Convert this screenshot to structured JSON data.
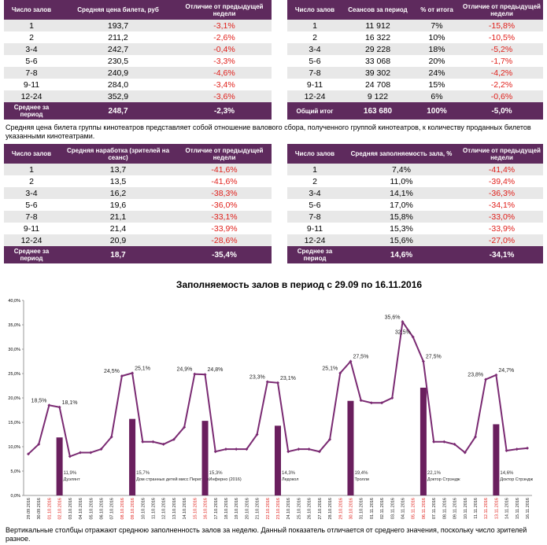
{
  "tables": [
    {
      "headers": [
        "Число залов",
        "Средняя цена билета, руб",
        "Отличие от предыдущей недели"
      ],
      "rows": [
        [
          "1",
          "193,7",
          "-3,1%"
        ],
        [
          "2",
          "211,2",
          "-2,6%"
        ],
        [
          "3-4",
          "242,7",
          "-0,4%"
        ],
        [
          "5-6",
          "230,5",
          "-3,3%"
        ],
        [
          "7-8",
          "240,9",
          "-4,6%"
        ],
        [
          "9-11",
          "284,0",
          "-3,4%"
        ],
        [
          "12-24",
          "352,9",
          "-3,6%"
        ]
      ],
      "footer": [
        "Среднее за период",
        "248,7",
        "-2,3%"
      ]
    },
    {
      "headers": [
        "Число залов",
        "Сеансов за период",
        "% от итога",
        "Отличие от предыдущей недели"
      ],
      "rows": [
        [
          "1",
          "11 912",
          "7%",
          "-15,8%"
        ],
        [
          "2",
          "16 322",
          "10%",
          "-10,5%"
        ],
        [
          "3-4",
          "29 228",
          "18%",
          "-5,2%"
        ],
        [
          "5-6",
          "33 068",
          "20%",
          "-1,7%"
        ],
        [
          "7-8",
          "39 302",
          "24%",
          "-4,2%"
        ],
        [
          "9-11",
          "24 708",
          "15%",
          "-2,2%"
        ],
        [
          "12-24",
          "9 122",
          "6%",
          "-0,6%"
        ]
      ],
      "footer": [
        "Общий итог",
        "163 680",
        "100%",
        "-5,0%"
      ]
    },
    {
      "headers": [
        "Число залов",
        "Средняя наработка (зрителей на сеанс)",
        "Отличие от предыдущей недели"
      ],
      "rows": [
        [
          "1",
          "13,7",
          "-41,6%"
        ],
        [
          "2",
          "13,5",
          "-41,6%"
        ],
        [
          "3-4",
          "16,2",
          "-38,3%"
        ],
        [
          "5-6",
          "19,6",
          "-36,0%"
        ],
        [
          "7-8",
          "21,1",
          "-33,1%"
        ],
        [
          "9-11",
          "21,4",
          "-33,9%"
        ],
        [
          "12-24",
          "20,9",
          "-28,6%"
        ]
      ],
      "footer": [
        "Среднее за период",
        "18,7",
        "-35,4%"
      ]
    },
    {
      "headers": [
        "Число залов",
        "Средняя заполняемость зала, %",
        "Отличие от предыдущей недели"
      ],
      "rows": [
        [
          "1",
          "7,4%",
          "-41,4%"
        ],
        [
          "2",
          "11,0%",
          "-39,4%"
        ],
        [
          "3-4",
          "14,1%",
          "-36,3%"
        ],
        [
          "5-6",
          "17,0%",
          "-34,1%"
        ],
        [
          "7-8",
          "15,8%",
          "-33,0%"
        ],
        [
          "9-11",
          "15,3%",
          "-33,9%"
        ],
        [
          "12-24",
          "15,6%",
          "-27,0%"
        ]
      ],
      "footer": [
        "Среднее за период",
        "14,6%",
        "-34,1%"
      ]
    }
  ],
  "note_price": "Средняя цена билета группы кинотеатров представляет собой отношение валового сбора, полученного группой кинотеатров, к количеству проданных билетов указанными кинотеатрами.",
  "note_chart": "Вертикальные столбцы отражают среднюю заполненность залов за неделю. Данный показатель отличается от среднего значения, поскольку число зрителей разное.",
  "chart_data": {
    "type": "line",
    "title": "Заполняемость залов в период с 29.09 по 16.11.2016",
    "x": [
      "29.09.2016",
      "30.09.2016",
      "01.10.2016",
      "02.10.2016",
      "03.10.2016",
      "04.10.2016",
      "05.10.2016",
      "06.10.2016",
      "07.10.2016",
      "08.10.2016",
      "09.10.2016",
      "10.10.2016",
      "11.10.2016",
      "12.10.2016",
      "13.10.2016",
      "14.10.2016",
      "15.10.2016",
      "16.10.2016",
      "17.10.2016",
      "18.10.2016",
      "19.10.2016",
      "20.10.2016",
      "21.10.2016",
      "22.10.2016",
      "23.10.2016",
      "24.10.2016",
      "25.10.2016",
      "26.10.2016",
      "27.10.2016",
      "28.10.2016",
      "29.10.2016",
      "30.10.2016",
      "31.10.2016",
      "01.11.2016",
      "02.11.2016",
      "03.11.2016",
      "04.11.2016",
      "05.11.2016",
      "06.11.2016",
      "07.11.2016",
      "08.11.2016",
      "09.11.2016",
      "10.11.2016",
      "11.11.2016",
      "12.11.2016",
      "13.11.2016",
      "14.11.2016",
      "15.11.2016",
      "16.11.2016"
    ],
    "weekend_color": "#e0201b",
    "series": [
      {
        "type": "line",
        "color": "#7a2a72",
        "values": [
          8.5,
          10.5,
          18.5,
          18.1,
          8.0,
          8.8,
          8.8,
          9.5,
          12.0,
          24.5,
          25.1,
          11.0,
          11.0,
          10.5,
          11.5,
          14.0,
          24.9,
          24.8,
          9.0,
          9.5,
          9.5,
          9.5,
          12.5,
          23.3,
          23.1,
          9.0,
          9.5,
          9.5,
          9.0,
          11.5,
          25.1,
          27.5,
          19.5,
          19.0,
          19.0,
          20.0,
          35.6,
          32.5,
          27.5,
          11.0,
          11.0,
          10.5,
          8.8,
          12.0,
          23.8,
          24.7,
          9.2,
          9.5,
          9.7
        ],
        "value_labels": [
          null,
          null,
          "18,5%",
          "18,1%",
          null,
          null,
          null,
          null,
          null,
          "24,5%",
          "25,1%",
          null,
          null,
          null,
          null,
          null,
          "24,9%",
          "24,8%",
          null,
          null,
          null,
          null,
          null,
          "23,3%",
          "23,1%",
          null,
          null,
          null,
          null,
          null,
          "25,1%",
          "27,5%",
          null,
          null,
          null,
          null,
          "35,6%",
          "32,5%",
          "27,5%",
          null,
          null,
          null,
          null,
          null,
          "23,8%",
          "24,7%",
          null,
          null,
          null
        ]
      },
      {
        "type": "bar",
        "color": "#6a1f5e",
        "values": [
          null,
          null,
          null,
          11.9,
          null,
          null,
          null,
          null,
          null,
          null,
          15.7,
          null,
          null,
          null,
          null,
          null,
          null,
          15.3,
          null,
          null,
          null,
          null,
          null,
          null,
          14.3,
          null,
          null,
          null,
          null,
          null,
          null,
          19.4,
          null,
          null,
          null,
          null,
          null,
          null,
          22.1,
          null,
          null,
          null,
          null,
          null,
          null,
          14.6,
          null,
          null,
          null
        ],
        "value_labels": [
          null,
          null,
          null,
          "11,9%",
          null,
          null,
          null,
          null,
          null,
          null,
          "15,7%",
          null,
          null,
          null,
          null,
          null,
          null,
          "15,3%",
          null,
          null,
          null,
          null,
          null,
          null,
          "14,3%",
          null,
          null,
          null,
          null,
          null,
          null,
          "19,4%",
          null,
          null,
          null,
          null,
          null,
          null,
          "22,1%",
          null,
          null,
          null,
          null,
          null,
          null,
          "14,6%",
          null,
          null,
          null
        ],
        "labels": [
          null,
          null,
          null,
          "Дуэлянт",
          null,
          null,
          null,
          null,
          null,
          null,
          "Дом странных детей мисс Перегрин",
          null,
          null,
          null,
          null,
          null,
          null,
          "Инферно (2016)",
          null,
          null,
          null,
          null,
          null,
          null,
          "Ледокол",
          null,
          null,
          null,
          null,
          null,
          null,
          "Тролли",
          null,
          null,
          null,
          null,
          null,
          null,
          "Доктор Стрэндж",
          null,
          null,
          null,
          null,
          null,
          null,
          "Доктор Стрэндж",
          null,
          null,
          null
        ]
      }
    ],
    "ylim": [
      0,
      40
    ],
    "yticks": [
      {
        "value": 0,
        "label": "0,0%"
      },
      {
        "value": 5,
        "label": "5,0%"
      },
      {
        "value": 10,
        "label": "10,0%"
      },
      {
        "value": 15,
        "label": "15,0%"
      },
      {
        "value": 20,
        "label": "20,0%"
      },
      {
        "value": 25,
        "label": "25,0%"
      },
      {
        "value": 30,
        "label": "30,0%"
      },
      {
        "value": 35,
        "label": "35,0%"
      },
      {
        "value": 40,
        "label": "40,0%"
      }
    ],
    "grid": false
  }
}
